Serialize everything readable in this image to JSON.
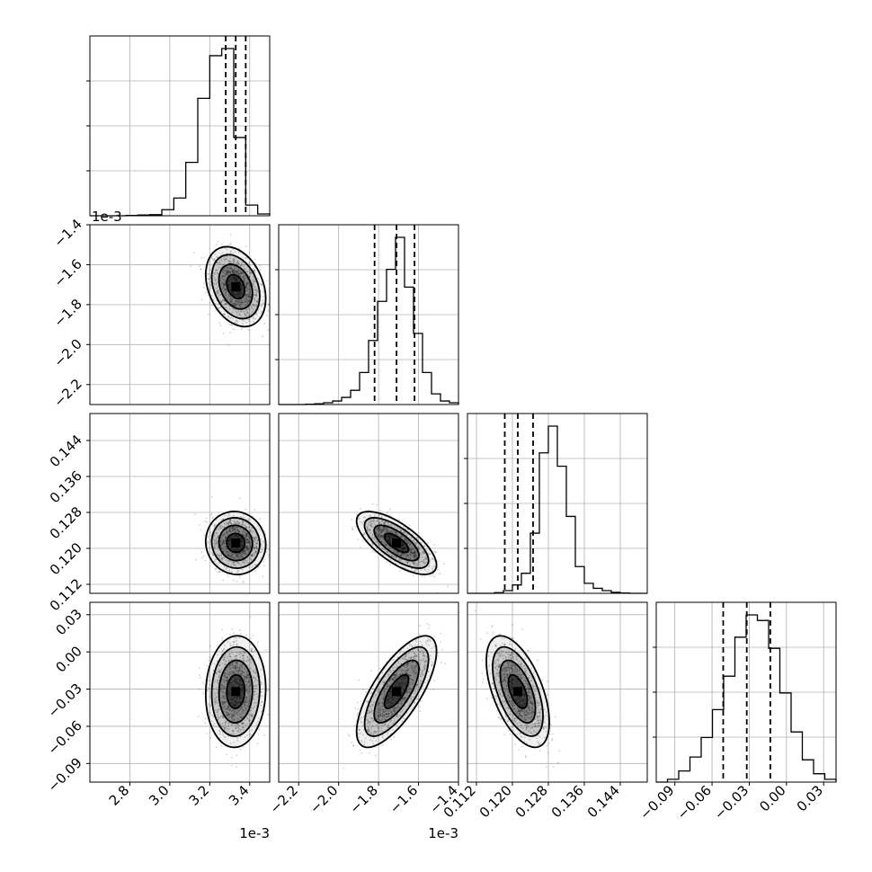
{
  "chart_data": {
    "type": "corner",
    "params": [
      {
        "xlim": [
          2.6,
          3.5
        ],
        "ticks": [
          2.8,
          3.0,
          3.2,
          3.4
        ],
        "tick_labels": [
          "2.8",
          "3.0",
          "3.2",
          "3.4"
        ],
        "offset_label": "1e-3",
        "median": 3.33,
        "q16": 3.28,
        "q84": 3.38
      },
      {
        "xlim": [
          -2.3,
          -1.4
        ],
        "ticks": [
          -2.2,
          -2.0,
          -1.8,
          -1.6,
          -1.4
        ],
        "tick_labels": [
          "−2.2",
          "−2.0",
          "−1.8",
          "−1.6",
          "−1.4"
        ],
        "offset_label": "1e-3",
        "median": -1.71,
        "q16": -1.82,
        "q84": -1.62
      },
      {
        "xlim": [
          0.11,
          0.15
        ],
        "ticks": [
          0.112,
          0.12,
          0.128,
          0.136,
          0.144
        ],
        "tick_labels": [
          "0.112",
          "0.120",
          "0.128",
          "0.136",
          "0.144"
        ],
        "offset_label": "",
        "median": 0.1212,
        "q16": 0.1183,
        "q84": 0.1246
      },
      {
        "xlim": [
          -0.105,
          0.04
        ],
        "ticks": [
          -0.09,
          -0.06,
          -0.03,
          0.0,
          0.03
        ],
        "tick_labels": [
          "−0.09",
          "−0.06",
          "−0.03",
          "0.00",
          "0.03"
        ],
        "offset_label": "",
        "median": -0.032,
        "q16": -0.051,
        "q84": -0.013
      }
    ],
    "histograms": [
      [
        0,
        0,
        0,
        1,
        2,
        3,
        17,
        50,
        150,
        330,
        450,
        470,
        220,
        30,
        5
      ],
      [
        0,
        0,
        0,
        1,
        2,
        5,
        10,
        20,
        40,
        90,
        180,
        290,
        380,
        470,
        330,
        200,
        90,
        30,
        10,
        5
      ],
      [
        0,
        0,
        0,
        2,
        8,
        25,
        60,
        180,
        420,
        500,
        380,
        230,
        80,
        30,
        15,
        8,
        3,
        1,
        0,
        0
      ],
      [
        0,
        5,
        20,
        45,
        80,
        130,
        190,
        260,
        300,
        290,
        240,
        160,
        90,
        40,
        15,
        5
      ]
    ],
    "correlations": [
      {
        "row": 1,
        "col": 0,
        "rho": -0.3
      },
      {
        "row": 2,
        "col": 0,
        "rho": -0.05
      },
      {
        "row": 2,
        "col": 1,
        "rho": -0.7
      },
      {
        "row": 3,
        "col": 0,
        "rho": 0.05
      },
      {
        "row": 3,
        "col": 1,
        "rho": 0.72
      },
      {
        "row": 3,
        "col": 2,
        "rho": -0.55
      }
    ],
    "std": [
      0.06,
      0.08,
      0.0028,
      0.018
    ],
    "grid": true
  }
}
